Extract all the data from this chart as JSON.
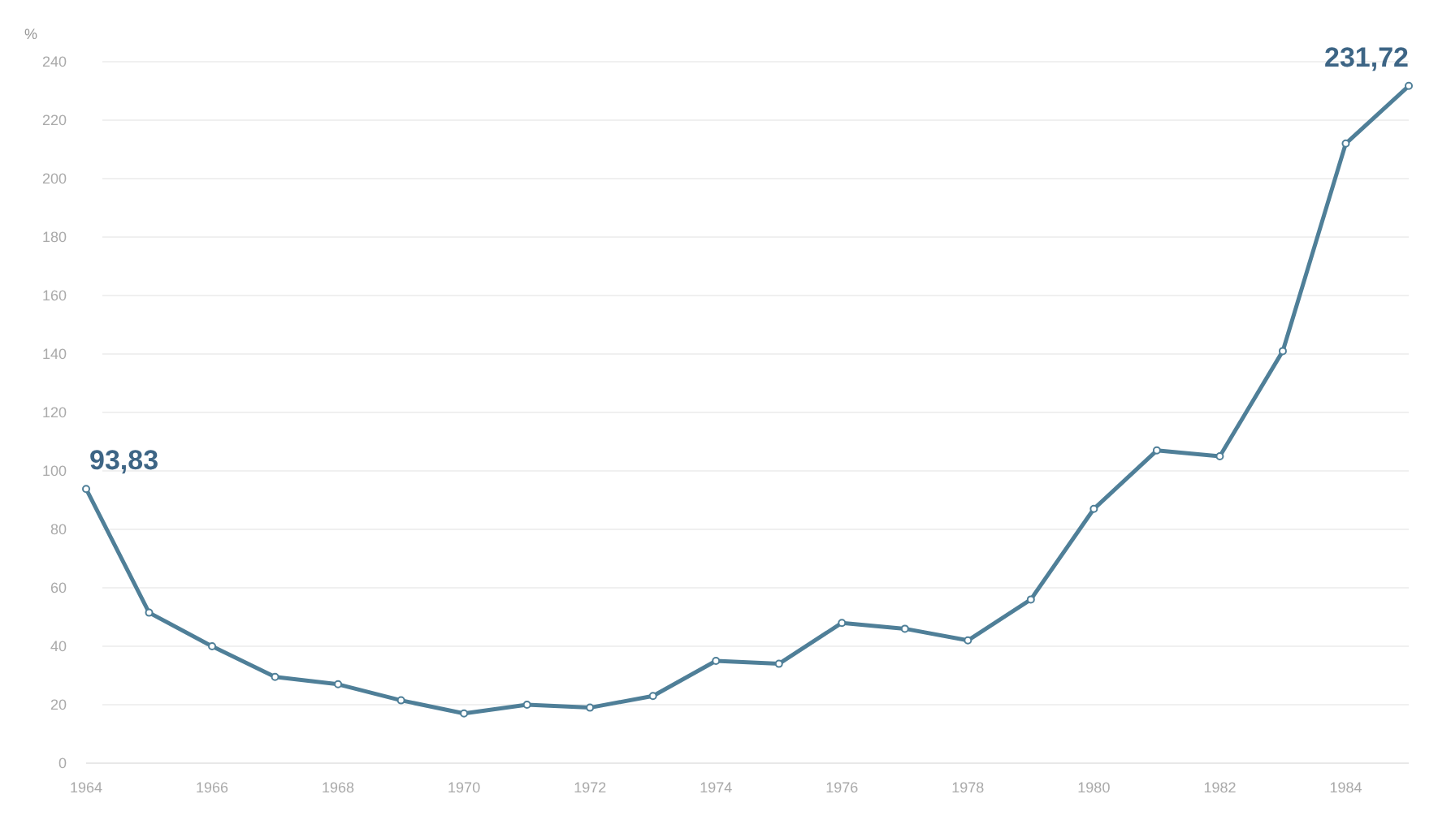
{
  "chart_data": {
    "type": "line",
    "ylabel": "%",
    "x": [
      1964,
      1965,
      1966,
      1967,
      1968,
      1969,
      1970,
      1971,
      1972,
      1973,
      1974,
      1975,
      1976,
      1977,
      1978,
      1979,
      1980,
      1981,
      1982,
      1983,
      1984,
      1985
    ],
    "series": [
      {
        "color": "#4f7f98",
        "values": [
          93.83,
          51.5,
          40,
          29.5,
          27,
          21.5,
          17,
          20,
          19,
          23,
          35,
          34,
          48,
          46,
          42,
          56,
          87,
          107,
          105,
          141,
          212,
          231.72
        ],
        "value_labels": [
          "93,83",
          null,
          null,
          null,
          null,
          null,
          null,
          null,
          null,
          null,
          null,
          null,
          null,
          null,
          null,
          null,
          null,
          null,
          null,
          null,
          null,
          "231,72"
        ]
      }
    ],
    "xlim": [
      1964,
      1985
    ],
    "xticks": [
      1964,
      1966,
      1968,
      1970,
      1972,
      1974,
      1976,
      1978,
      1980,
      1982,
      1984
    ],
    "ylim": [
      0,
      240
    ],
    "yticks": [
      0,
      20,
      40,
      60,
      80,
      100,
      120,
      140,
      160,
      180,
      200,
      220,
      240
    ],
    "grid": "y",
    "marker": "circle",
    "line_style": "solid"
  }
}
